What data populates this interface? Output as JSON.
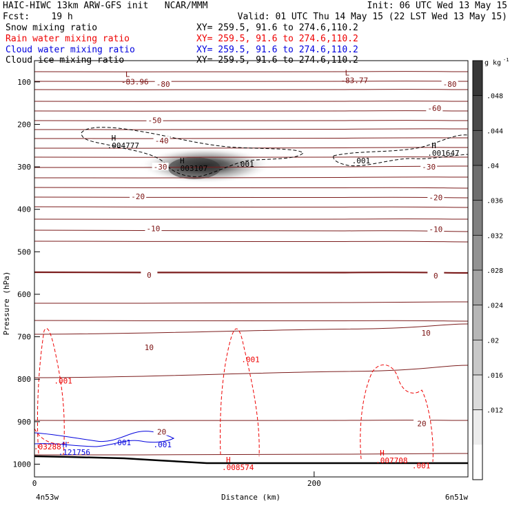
{
  "header": {
    "line1_left": "HAIC-HIWC 13km ARW-GFS init   NCAR/MMM",
    "line1_right": "Init: 06 UTC Wed 13 May 15",
    "line2_left": "Fcst:    19 h",
    "line2_right": "Valid: 01 UTC Thu 14 May 15 (22 LST Wed 13 May 15)",
    "fields": [
      {
        "name": "Snow mixing ratio",
        "xy": "XY= 259.5, 91.6 to 274.6,110.2",
        "color": "#000000"
      },
      {
        "name": "Rain water mixing ratio",
        "xy": "XY= 259.5, 91.6 to 274.6,110.2",
        "color": "#ee0000"
      },
      {
        "name": "Cloud water mixing ratio",
        "xy": "XY= 259.5, 91.6 to 274.6,110.2",
        "color": "#0000dd"
      },
      {
        "name": "Cloud ice mixing ratio",
        "xy": "XY= 259.5, 91.6 to 274.6,110.2",
        "color": "#000000"
      }
    ]
  },
  "chart_data": {
    "type": "cross-section contour",
    "ylabel": "Pressure (hPa)",
    "xlabel": "Distance (km)",
    "x_ticks": [
      0,
      200
    ],
    "y_ticks": [
      100,
      200,
      300,
      400,
      500,
      600,
      700,
      800,
      900,
      1000
    ],
    "xlim": [
      0,
      310
    ],
    "ylim": [
      1030,
      50
    ],
    "end_labels": {
      "left": "4n53w",
      "right": "6n51w"
    },
    "colorbar": {
      "unit": "g kg",
      "unit_exp": "-1",
      "labels": [
        ".048",
        ".044",
        ".04",
        ".036",
        ".032",
        ".028",
        ".024",
        ".02",
        ".016",
        ".012"
      ],
      "bins": [
        0.052,
        0.048,
        0.044,
        0.04,
        0.036,
        0.032,
        0.028,
        0.024,
        0.02,
        0.016,
        0.012,
        0.008
      ]
    },
    "temperature_contour_labels": [
      {
        "text": "-80",
        "x": 92,
        "p": 105
      },
      {
        "text": "-80",
        "x": 297,
        "p": 105
      },
      {
        "text": "-60",
        "x": 286,
        "p": 162
      },
      {
        "text": "-50",
        "x": 86,
        "p": 190
      },
      {
        "text": "-40",
        "x": 91,
        "p": 238
      },
      {
        "text": "-30",
        "x": 90,
        "p": 300
      },
      {
        "text": "-30",
        "x": 282,
        "p": 300
      },
      {
        "text": "-20",
        "x": 74,
        "p": 370
      },
      {
        "text": "-20",
        "x": 287,
        "p": 372
      },
      {
        "text": "-10",
        "x": 85,
        "p": 445
      },
      {
        "text": "-10",
        "x": 287,
        "p": 447
      },
      {
        "text": "0",
        "x": 82,
        "p": 555
      },
      {
        "text": "0",
        "x": 287,
        "p": 556
      },
      {
        "text": "10",
        "x": 82,
        "p": 725
      },
      {
        "text": "10",
        "x": 280,
        "p": 691
      },
      {
        "text": "20",
        "x": 91,
        "p": 924
      },
      {
        "text": "20",
        "x": 277,
        "p": 904
      }
    ],
    "extrema_labels": [
      {
        "letter": "L",
        "value": "-83.96",
        "x": 65,
        "p": 88,
        "color": "#7a1010"
      },
      {
        "letter": "L",
        "value": "-83.77",
        "x": 222,
        "p": 85,
        "color": "#7a1010"
      },
      {
        "letter": "H",
        "value": ".004777",
        "x": 55,
        "p": 238,
        "color": "#000000"
      },
      {
        "letter": "H",
        "value": ".003107",
        "x": 104,
        "p": 292,
        "color": "#000000"
      },
      {
        "letter": "H",
        "value": ".001647",
        "x": 284,
        "p": 256,
        "color": "#000000"
      },
      {
        "letter": "H",
        "value": ".121756",
        "x": 20,
        "p": 960,
        "color": "#0000dd"
      },
      {
        "letter": "H",
        "value": ".008574",
        "x": 137,
        "p": 996,
        "color": "#ee0000"
      },
      {
        "letter": "H",
        "value": ".007708",
        "x": 247,
        "p": 980,
        "color": "#ee0000"
      }
    ],
    "other_labels": [
      {
        "text": ".001",
        "x": 144,
        "p": 300,
        "color": "#000000"
      },
      {
        "text": ".001",
        "x": 227,
        "p": 292,
        "color": "#000000"
      },
      {
        "text": ".001",
        "x": 14,
        "p": 810,
        "color": "#ee0000"
      },
      {
        "text": ".001",
        "x": 148,
        "p": 760,
        "color": "#ee0000"
      },
      {
        "text": ".001",
        "x": 270,
        "p": 1010,
        "color": "#ee0000"
      },
      {
        "text": ".03288",
        "x": -0.5,
        "p": 965,
        "color": "#ee0000"
      },
      {
        "text": ".001",
        "x": 56,
        "p": 955,
        "color": "#0000dd"
      },
      {
        "text": ".001",
        "x": 85,
        "p": 960,
        "color": "#0000dd"
      }
    ],
    "snow_max_location": {
      "x": 104,
      "p": 300,
      "value": 0.052
    }
  }
}
